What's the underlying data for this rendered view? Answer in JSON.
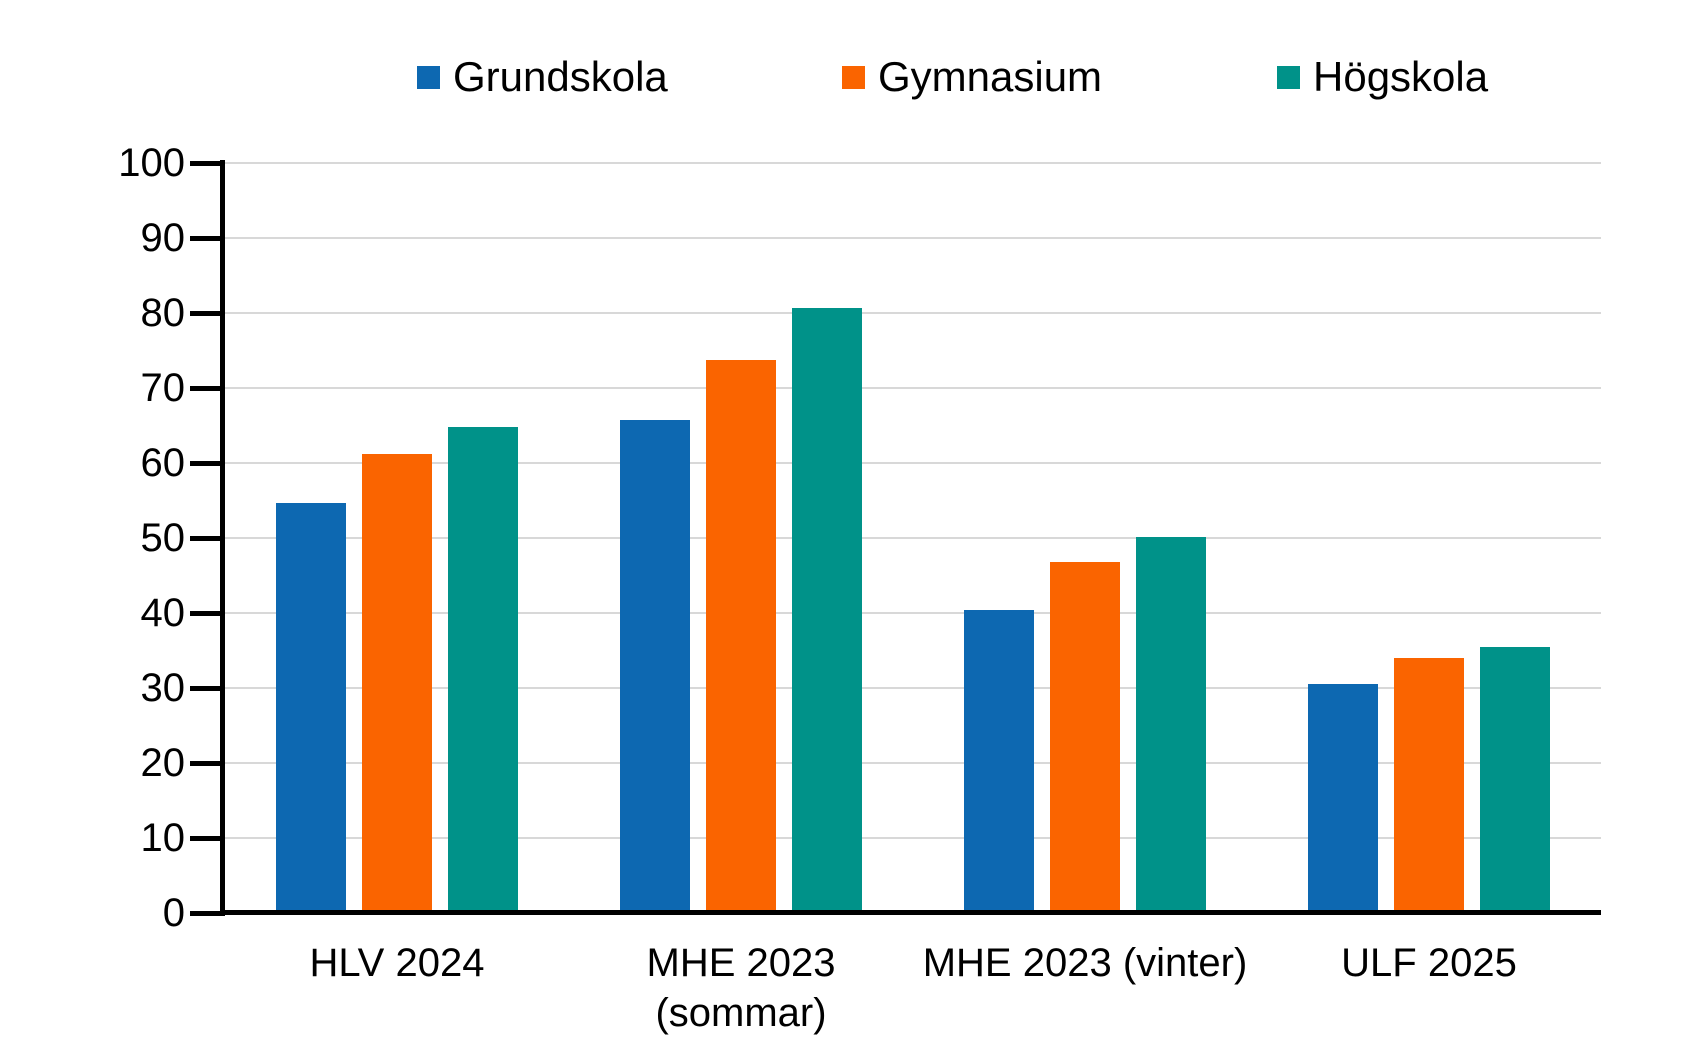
{
  "chart_data": {
    "type": "bar",
    "title": "",
    "categories": [
      "HLV 2024",
      "MHE 2023\n(sommar)",
      "MHE 2023 (vinter)",
      "ULF 2025"
    ],
    "series": [
      {
        "name": "Grundskola",
        "color": "#0D68B1",
        "values": [
          54.7,
          65.7,
          40.4,
          30.5
        ]
      },
      {
        "name": "Gymnasium",
        "color": "#FA6400",
        "values": [
          61.2,
          73.8,
          46.8,
          34.0
        ]
      },
      {
        "name": "Högskola",
        "color": "#009289",
        "values": [
          64.8,
          80.7,
          50.2,
          35.5
        ]
      }
    ],
    "xlabel": "",
    "ylabel": "",
    "ylim": [
      0,
      100
    ],
    "yticks": [
      0,
      10,
      20,
      30,
      40,
      50,
      60,
      70,
      80,
      90,
      100
    ],
    "grid": "horizontal",
    "legend_position": "top"
  },
  "colors": {
    "background": "#FFFFFF",
    "gridline": "#D8D8D8",
    "axis": "#000000",
    "text": "#000000"
  }
}
